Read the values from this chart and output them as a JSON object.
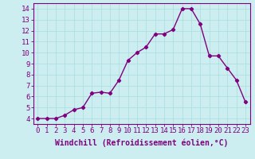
{
  "x": [
    0,
    1,
    2,
    3,
    4,
    5,
    6,
    7,
    8,
    9,
    10,
    11,
    12,
    13,
    14,
    15,
    16,
    17,
    18,
    19,
    20,
    21,
    22,
    23
  ],
  "y": [
    4.0,
    4.0,
    4.0,
    4.3,
    4.8,
    5.0,
    6.3,
    6.4,
    6.3,
    7.5,
    9.3,
    10.0,
    10.5,
    11.7,
    11.7,
    12.1,
    14.0,
    14.0,
    12.6,
    9.7,
    9.7,
    8.6,
    7.5,
    5.5
  ],
  "line_color": "#800080",
  "marker": "D",
  "marker_size": 2.2,
  "bg_color": "#cceef0",
  "grid_color": "#aadddd",
  "xlabel": "Windchill (Refroidissement éolien,°C)",
  "xlabel_fontsize": 7,
  "tick_fontsize": 6.5,
  "xlim": [
    -0.5,
    23.5
  ],
  "ylim": [
    3.5,
    14.5
  ],
  "yticks": [
    4,
    5,
    6,
    7,
    8,
    9,
    10,
    11,
    12,
    13,
    14
  ],
  "xticks": [
    0,
    1,
    2,
    3,
    4,
    5,
    6,
    7,
    8,
    9,
    10,
    11,
    12,
    13,
    14,
    15,
    16,
    17,
    18,
    19,
    20,
    21,
    22,
    23
  ],
  "spine_color": "#800080",
  "linewidth": 1.0
}
